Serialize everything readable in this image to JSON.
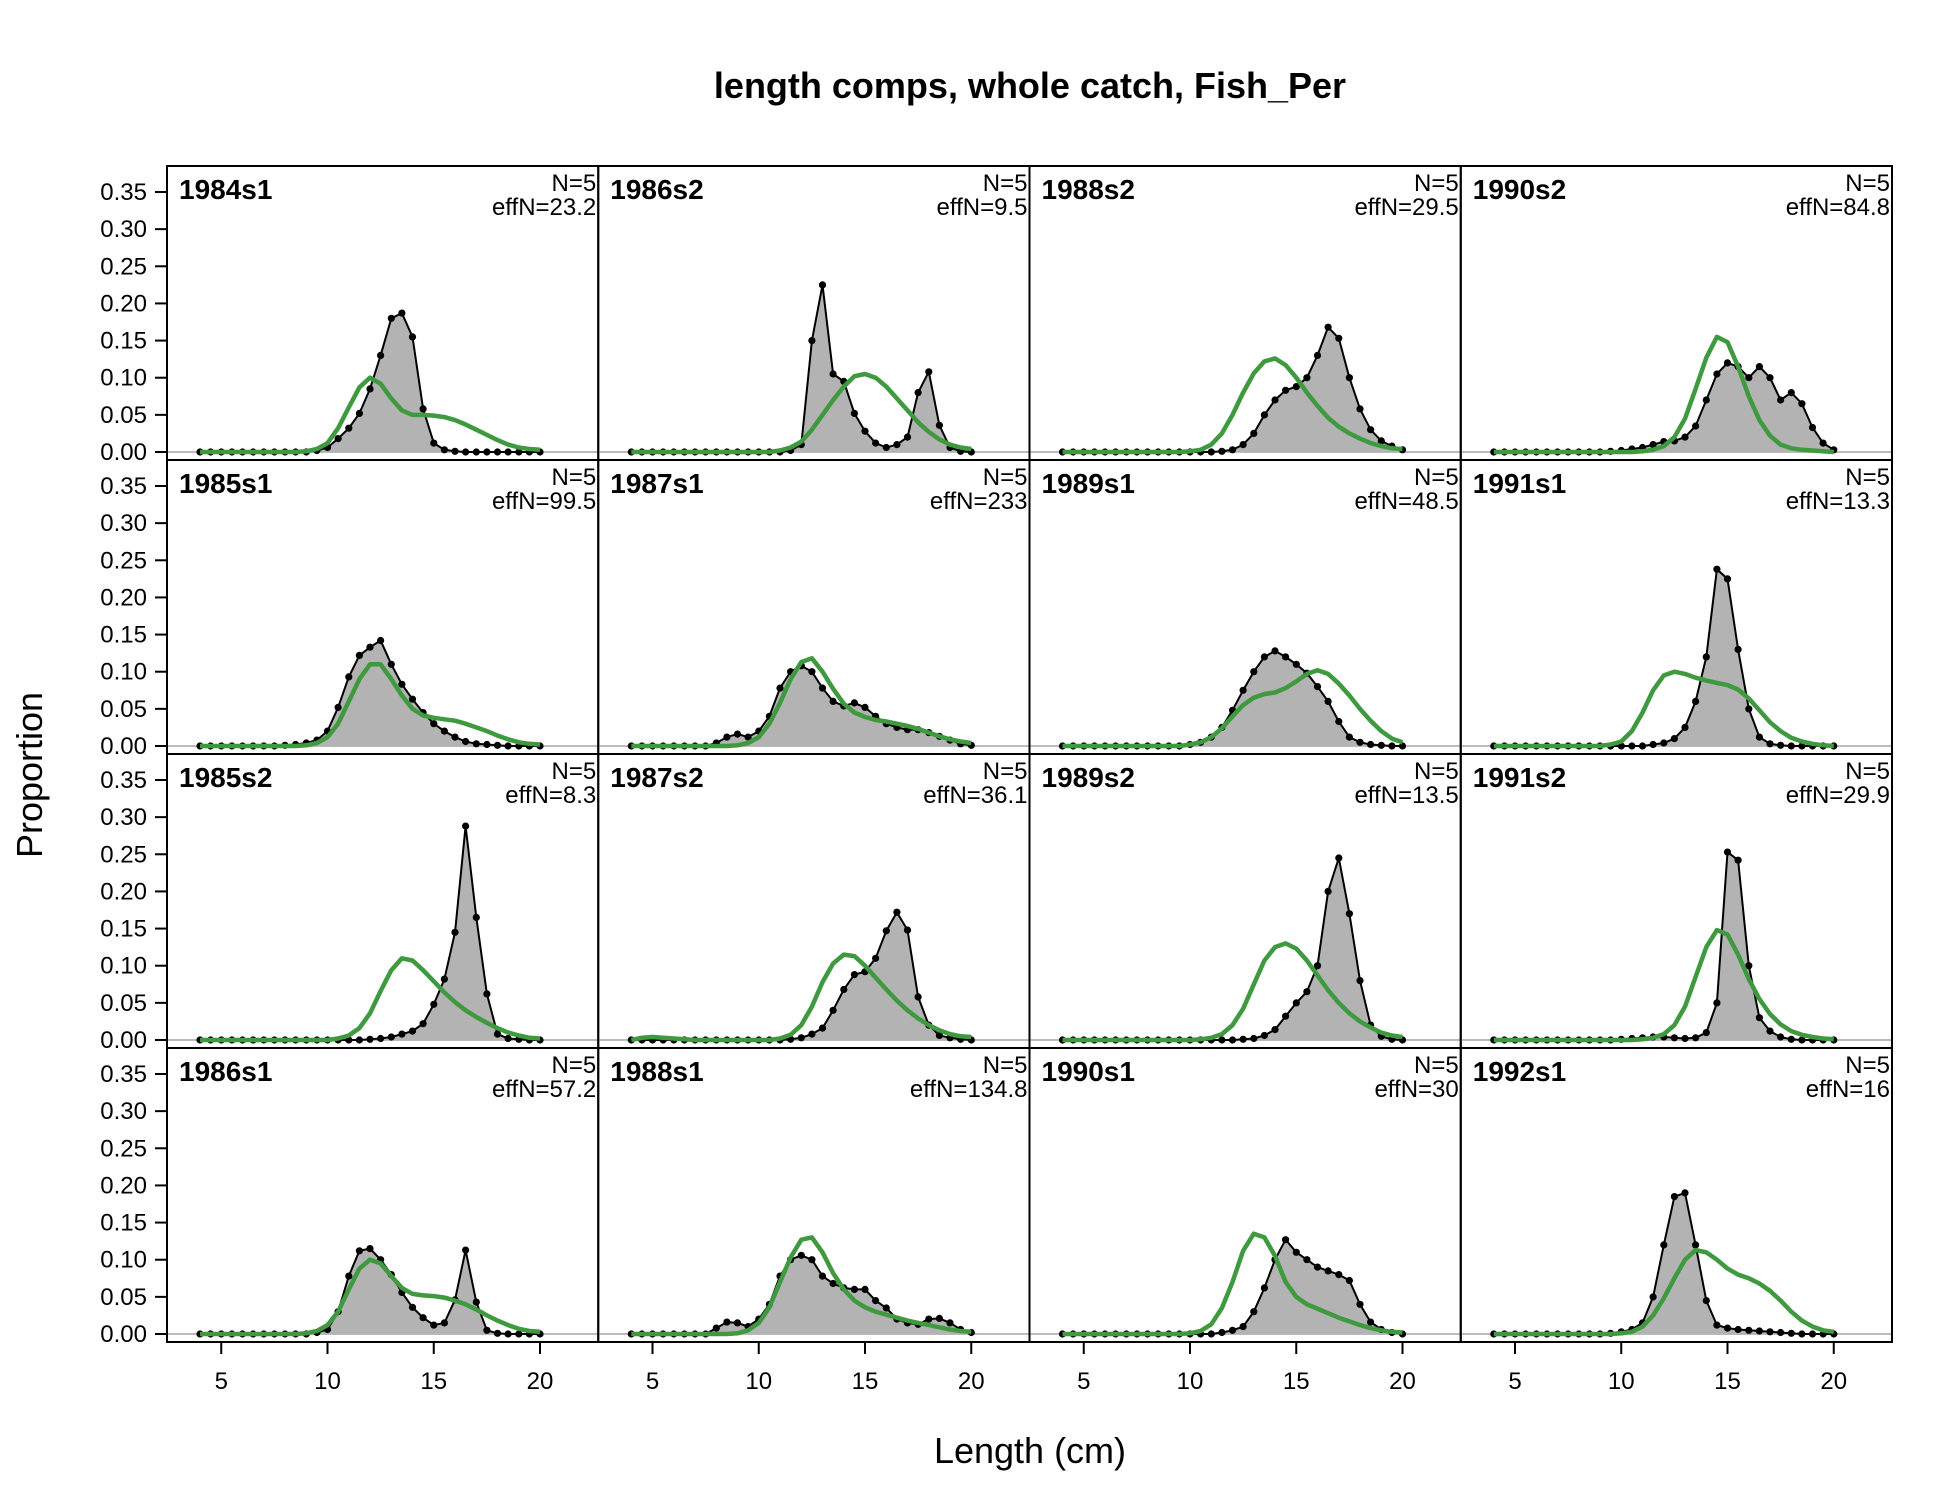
{
  "chart_data": {
    "type": "area",
    "title": "length comps, whole catch, Fish_Per",
    "xlabel": "Length (cm)",
    "ylabel": "Proportion",
    "xlim": [
      4,
      20
    ],
    "ylim": [
      0,
      0.35
    ],
    "xticks": [
      5,
      10,
      15,
      20
    ],
    "yticks": [
      "0.00",
      "0.05",
      "0.10",
      "0.15",
      "0.20",
      "0.25",
      "0.30",
      "0.35"
    ],
    "layout": {
      "columns": 4,
      "rows": 4,
      "order": "column-major"
    },
    "colors": {
      "observed_fill": "#b3b3b3",
      "observed_line": "#000000",
      "expected_line": "#3f9a3f",
      "zero_line": "#bbbbbb"
    },
    "x": [
      4,
      4.5,
      5,
      5.5,
      6,
      6.5,
      7,
      7.5,
      8,
      8.5,
      9,
      9.5,
      10,
      10.5,
      11,
      11.5,
      12,
      12.5,
      13,
      13.5,
      14,
      14.5,
      15,
      15.5,
      16,
      16.5,
      17,
      17.5,
      18,
      18.5,
      19,
      19.5,
      20
    ],
    "panels": [
      {
        "label": "1984s1",
        "n_label": "N=5",
        "effn_label": "effN=23.2",
        "observed": [
          0,
          0,
          0,
          0,
          0,
          0,
          0,
          0,
          0,
          0,
          0,
          0.002,
          0.006,
          0.018,
          0.032,
          0.052,
          0.085,
          0.13,
          0.18,
          0.187,
          0.155,
          0.058,
          0.012,
          0.003,
          0.001,
          0,
          0,
          0,
          0,
          0,
          0,
          0,
          0
        ],
        "expected": [
          0,
          0,
          0,
          0,
          0,
          0,
          0,
          0,
          0,
          0,
          0.001,
          0.004,
          0.012,
          0.032,
          0.06,
          0.087,
          0.1,
          0.092,
          0.072,
          0.056,
          0.05,
          0.05,
          0.049,
          0.047,
          0.043,
          0.037,
          0.03,
          0.023,
          0.016,
          0.01,
          0.006,
          0.004,
          0.003
        ]
      },
      {
        "label": "1985s1",
        "n_label": "N=5",
        "effn_label": "effN=99.5",
        "observed": [
          0,
          0,
          0,
          0,
          0,
          0,
          0,
          0,
          0.001,
          0.002,
          0.004,
          0.008,
          0.02,
          0.052,
          0.093,
          0.122,
          0.133,
          0.142,
          0.11,
          0.083,
          0.063,
          0.045,
          0.03,
          0.02,
          0.012,
          0.006,
          0.003,
          0.002,
          0.001,
          0,
          0,
          0,
          0
        ],
        "expected": [
          0,
          0,
          0,
          0,
          0,
          0,
          0,
          0,
          0,
          0,
          0.001,
          0.004,
          0.012,
          0.03,
          0.06,
          0.09,
          0.11,
          0.11,
          0.09,
          0.068,
          0.05,
          0.041,
          0.038,
          0.036,
          0.034,
          0.03,
          0.025,
          0.02,
          0.014,
          0.009,
          0.005,
          0.003,
          0.002
        ]
      },
      {
        "label": "1985s2",
        "n_label": "N=5",
        "effn_label": "effN=8.3",
        "observed": [
          0,
          0,
          0,
          0,
          0,
          0,
          0,
          0,
          0,
          0,
          0,
          0,
          0,
          0,
          0,
          0,
          0.001,
          0.002,
          0.004,
          0.008,
          0.012,
          0.022,
          0.048,
          0.082,
          0.145,
          0.288,
          0.165,
          0.062,
          0.008,
          0.002,
          0.001,
          0,
          0
        ],
        "expected": [
          0,
          0,
          0,
          0,
          0,
          0,
          0,
          0,
          0,
          0,
          0,
          0,
          0,
          0.002,
          0.006,
          0.016,
          0.036,
          0.066,
          0.094,
          0.11,
          0.107,
          0.094,
          0.079,
          0.064,
          0.051,
          0.04,
          0.031,
          0.023,
          0.016,
          0.01,
          0.006,
          0.003,
          0.002
        ]
      },
      {
        "label": "1986s1",
        "n_label": "N=5",
        "effn_label": "effN=57.2",
        "observed": [
          0,
          0,
          0,
          0,
          0,
          0,
          0,
          0,
          0,
          0,
          0,
          0.002,
          0.006,
          0.03,
          0.078,
          0.112,
          0.115,
          0.1,
          0.08,
          0.056,
          0.036,
          0.022,
          0.012,
          0.015,
          0.046,
          0.113,
          0.043,
          0.005,
          0.001,
          0,
          0,
          0,
          0
        ],
        "expected": [
          0,
          0,
          0,
          0,
          0,
          0,
          0,
          0,
          0,
          0,
          0.001,
          0.004,
          0.012,
          0.03,
          0.06,
          0.088,
          0.1,
          0.095,
          0.078,
          0.062,
          0.054,
          0.052,
          0.051,
          0.049,
          0.045,
          0.04,
          0.033,
          0.025,
          0.018,
          0.012,
          0.007,
          0.004,
          0.003
        ]
      },
      {
        "label": "1986s2",
        "n_label": "N=5",
        "effn_label": "effN=9.5",
        "observed": [
          0,
          0,
          0,
          0,
          0,
          0,
          0,
          0,
          0,
          0,
          0,
          0,
          0,
          0,
          0,
          0.002,
          0.01,
          0.15,
          0.225,
          0.105,
          0.095,
          0.052,
          0.028,
          0.012,
          0.006,
          0.01,
          0.02,
          0.08,
          0.108,
          0.036,
          0.006,
          0.001,
          0
        ],
        "expected": [
          0,
          0,
          0,
          0,
          0,
          0,
          0,
          0,
          0,
          0,
          0,
          0,
          0,
          0,
          0.002,
          0.006,
          0.014,
          0.03,
          0.05,
          0.07,
          0.088,
          0.102,
          0.105,
          0.1,
          0.088,
          0.072,
          0.056,
          0.04,
          0.027,
          0.017,
          0.01,
          0.006,
          0.004
        ]
      },
      {
        "label": "1987s1",
        "n_label": "N=5",
        "effn_label": "effN=233",
        "observed": [
          0,
          0,
          0,
          0,
          0,
          0,
          0,
          0,
          0.004,
          0.012,
          0.016,
          0.012,
          0.02,
          0.04,
          0.078,
          0.1,
          0.108,
          0.1,
          0.078,
          0.06,
          0.054,
          0.058,
          0.052,
          0.04,
          0.03,
          0.025,
          0.022,
          0.022,
          0.018,
          0.013,
          0.008,
          0.003,
          0.001
        ],
        "expected": [
          0,
          0,
          0,
          0,
          0,
          0,
          0,
          0,
          0,
          0,
          0.001,
          0.004,
          0.012,
          0.03,
          0.058,
          0.09,
          0.113,
          0.118,
          0.1,
          0.077,
          0.057,
          0.045,
          0.039,
          0.035,
          0.033,
          0.03,
          0.027,
          0.023,
          0.018,
          0.013,
          0.009,
          0.006,
          0.004
        ]
      },
      {
        "label": "1987s2",
        "n_label": "N=5",
        "effn_label": "effN=36.1",
        "observed": [
          0,
          0,
          0,
          0,
          0,
          0,
          0,
          0,
          0,
          0,
          0,
          0,
          0,
          0,
          0,
          0.001,
          0.003,
          0.008,
          0.016,
          0.04,
          0.068,
          0.088,
          0.092,
          0.11,
          0.147,
          0.172,
          0.148,
          0.058,
          0.02,
          0.006,
          0.003,
          0.001,
          0
        ],
        "expected": [
          0,
          0.003,
          0.004,
          0.003,
          0.002,
          0.001,
          0,
          0,
          0,
          0,
          0,
          0,
          0,
          0,
          0.002,
          0.007,
          0.02,
          0.045,
          0.078,
          0.103,
          0.115,
          0.113,
          0.1,
          0.084,
          0.068,
          0.053,
          0.04,
          0.029,
          0.02,
          0.013,
          0.008,
          0.005,
          0.004
        ]
      },
      {
        "label": "1988s1",
        "n_label": "N=5",
        "effn_label": "effN=134.8",
        "observed": [
          0,
          0,
          0,
          0,
          0,
          0,
          0,
          0,
          0.008,
          0.016,
          0.015,
          0.01,
          0.02,
          0.04,
          0.078,
          0.1,
          0.106,
          0.1,
          0.078,
          0.068,
          0.062,
          0.06,
          0.06,
          0.045,
          0.035,
          0.02,
          0.015,
          0.013,
          0.02,
          0.021,
          0.015,
          0.006,
          0.002
        ],
        "expected": [
          0,
          0,
          0,
          0,
          0,
          0,
          0,
          0,
          0,
          0,
          0.001,
          0.005,
          0.015,
          0.036,
          0.07,
          0.103,
          0.127,
          0.13,
          0.11,
          0.082,
          0.06,
          0.045,
          0.036,
          0.03,
          0.026,
          0.022,
          0.018,
          0.015,
          0.012,
          0.009,
          0.006,
          0.004,
          0.003
        ]
      },
      {
        "label": "1988s2",
        "n_label": "N=5",
        "effn_label": "effN=29.5",
        "observed": [
          0,
          0,
          0,
          0,
          0,
          0,
          0,
          0,
          0,
          0,
          0,
          0,
          0,
          0,
          0,
          0.001,
          0.003,
          0.01,
          0.025,
          0.05,
          0.07,
          0.083,
          0.088,
          0.1,
          0.13,
          0.168,
          0.153,
          0.1,
          0.058,
          0.03,
          0.015,
          0.008,
          0.003
        ],
        "expected": [
          0,
          0,
          0,
          0,
          0,
          0,
          0,
          0,
          0,
          0,
          0,
          0,
          0.001,
          0.003,
          0.01,
          0.025,
          0.05,
          0.08,
          0.106,
          0.122,
          0.126,
          0.117,
          0.1,
          0.08,
          0.062,
          0.046,
          0.034,
          0.025,
          0.018,
          0.012,
          0.008,
          0.005,
          0.004
        ]
      },
      {
        "label": "1989s1",
        "n_label": "N=5",
        "effn_label": "effN=48.5",
        "observed": [
          0,
          0,
          0,
          0,
          0,
          0,
          0,
          0,
          0,
          0,
          0,
          0,
          0.002,
          0.005,
          0.012,
          0.025,
          0.048,
          0.075,
          0.1,
          0.12,
          0.128,
          0.12,
          0.11,
          0.098,
          0.08,
          0.06,
          0.033,
          0.012,
          0.005,
          0.002,
          0.001,
          0,
          0
        ],
        "expected": [
          0,
          0,
          0,
          0,
          0,
          0,
          0,
          0,
          0,
          0,
          0,
          0,
          0.002,
          0.005,
          0.012,
          0.024,
          0.04,
          0.055,
          0.065,
          0.07,
          0.072,
          0.078,
          0.087,
          0.097,
          0.102,
          0.097,
          0.084,
          0.068,
          0.05,
          0.034,
          0.02,
          0.01,
          0.005
        ]
      },
      {
        "label": "1989s2",
        "n_label": "N=5",
        "effn_label": "effN=13.5",
        "observed": [
          0,
          0,
          0,
          0,
          0,
          0,
          0,
          0,
          0,
          0,
          0,
          0,
          0,
          0,
          0,
          0,
          0,
          0.001,
          0.002,
          0.006,
          0.014,
          0.032,
          0.05,
          0.065,
          0.1,
          0.2,
          0.245,
          0.17,
          0.08,
          0.02,
          0.005,
          0.001,
          0
        ],
        "expected": [
          0,
          0,
          0,
          0,
          0,
          0,
          0,
          0,
          0,
          0,
          0,
          0,
          0,
          0.001,
          0.003,
          0.008,
          0.02,
          0.042,
          0.075,
          0.107,
          0.125,
          0.13,
          0.123,
          0.107,
          0.087,
          0.067,
          0.05,
          0.036,
          0.025,
          0.017,
          0.01,
          0.006,
          0.004
        ]
      },
      {
        "label": "1990s1",
        "n_label": "N=5",
        "effn_label": "effN=30",
        "observed": [
          0,
          0,
          0,
          0,
          0,
          0,
          0,
          0,
          0,
          0,
          0,
          0,
          0,
          0,
          0,
          0.002,
          0.005,
          0.01,
          0.03,
          0.062,
          0.1,
          0.127,
          0.11,
          0.1,
          0.09,
          0.085,
          0.08,
          0.072,
          0.04,
          0.016,
          0.006,
          0.002,
          0
        ],
        "expected": [
          0,
          0,
          0,
          0,
          0,
          0,
          0,
          0,
          0,
          0,
          0,
          0,
          0.001,
          0.004,
          0.013,
          0.035,
          0.07,
          0.112,
          0.135,
          0.13,
          0.105,
          0.07,
          0.05,
          0.04,
          0.034,
          0.028,
          0.022,
          0.017,
          0.012,
          0.008,
          0.005,
          0.003,
          0.002
        ]
      },
      {
        "label": "1990s2",
        "n_label": "N=5",
        "effn_label": "effN=84.8",
        "observed": [
          0,
          0,
          0,
          0,
          0,
          0,
          0,
          0,
          0,
          0,
          0,
          0.001,
          0.002,
          0.004,
          0.006,
          0.01,
          0.014,
          0.015,
          0.02,
          0.035,
          0.07,
          0.105,
          0.12,
          0.115,
          0.1,
          0.115,
          0.1,
          0.07,
          0.08,
          0.065,
          0.033,
          0.012,
          0.003
        ],
        "expected": [
          0,
          0,
          0,
          0,
          0,
          0,
          0,
          0,
          0,
          0,
          0,
          0,
          0,
          0,
          0.001,
          0.003,
          0.008,
          0.02,
          0.045,
          0.085,
          0.127,
          0.155,
          0.148,
          0.115,
          0.075,
          0.043,
          0.022,
          0.01,
          0.005,
          0.003,
          0.002,
          0.001,
          0
        ]
      },
      {
        "label": "1991s1",
        "n_label": "N=5",
        "effn_label": "effN=13.3",
        "observed": [
          0,
          0,
          0,
          0,
          0,
          0,
          0,
          0,
          0,
          0,
          0,
          0,
          0,
          0,
          0,
          0.002,
          0.004,
          0.01,
          0.025,
          0.06,
          0.12,
          0.238,
          0.225,
          0.13,
          0.05,
          0.012,
          0.003,
          0.001,
          0,
          0,
          0,
          0,
          0
        ],
        "expected": [
          0,
          0,
          0,
          0,
          0,
          0,
          0,
          0,
          0,
          0,
          0,
          0.002,
          0.006,
          0.02,
          0.045,
          0.075,
          0.095,
          0.1,
          0.097,
          0.092,
          0.088,
          0.085,
          0.082,
          0.076,
          0.064,
          0.048,
          0.032,
          0.02,
          0.011,
          0.006,
          0.003,
          0.001,
          0
        ]
      },
      {
        "label": "1991s2",
        "n_label": "N=5",
        "effn_label": "effN=29.9",
        "observed": [
          0,
          0,
          0,
          0,
          0,
          0,
          0,
          0,
          0,
          0,
          0,
          0,
          0.001,
          0.002,
          0.003,
          0.004,
          0.004,
          0.003,
          0.002,
          0.003,
          0.01,
          0.05,
          0.253,
          0.242,
          0.1,
          0.03,
          0.012,
          0.004,
          0.001,
          0,
          0,
          0,
          0
        ],
        "expected": [
          0,
          0,
          0,
          0,
          0,
          0,
          0,
          0,
          0,
          0,
          0,
          0,
          0,
          0,
          0.001,
          0.003,
          0.008,
          0.02,
          0.045,
          0.085,
          0.125,
          0.148,
          0.142,
          0.115,
          0.082,
          0.055,
          0.035,
          0.021,
          0.012,
          0.007,
          0.004,
          0.002,
          0.001
        ]
      },
      {
        "label": "1992s1",
        "n_label": "N=5",
        "effn_label": "effN=16",
        "observed": [
          0,
          0,
          0,
          0,
          0,
          0,
          0,
          0,
          0,
          0,
          0,
          0.001,
          0.003,
          0.006,
          0.015,
          0.05,
          0.12,
          0.185,
          0.19,
          0.12,
          0.045,
          0.012,
          0.008,
          0.006,
          0.005,
          0.004,
          0.003,
          0.002,
          0.001,
          0,
          0,
          0,
          0
        ],
        "expected": [
          0,
          0,
          0,
          0,
          0,
          0,
          0,
          0,
          0,
          0,
          0,
          0,
          0.001,
          0.003,
          0.01,
          0.025,
          0.048,
          0.075,
          0.1,
          0.113,
          0.11,
          0.1,
          0.088,
          0.08,
          0.075,
          0.068,
          0.058,
          0.045,
          0.03,
          0.018,
          0.01,
          0.005,
          0.003
        ]
      }
    ]
  }
}
